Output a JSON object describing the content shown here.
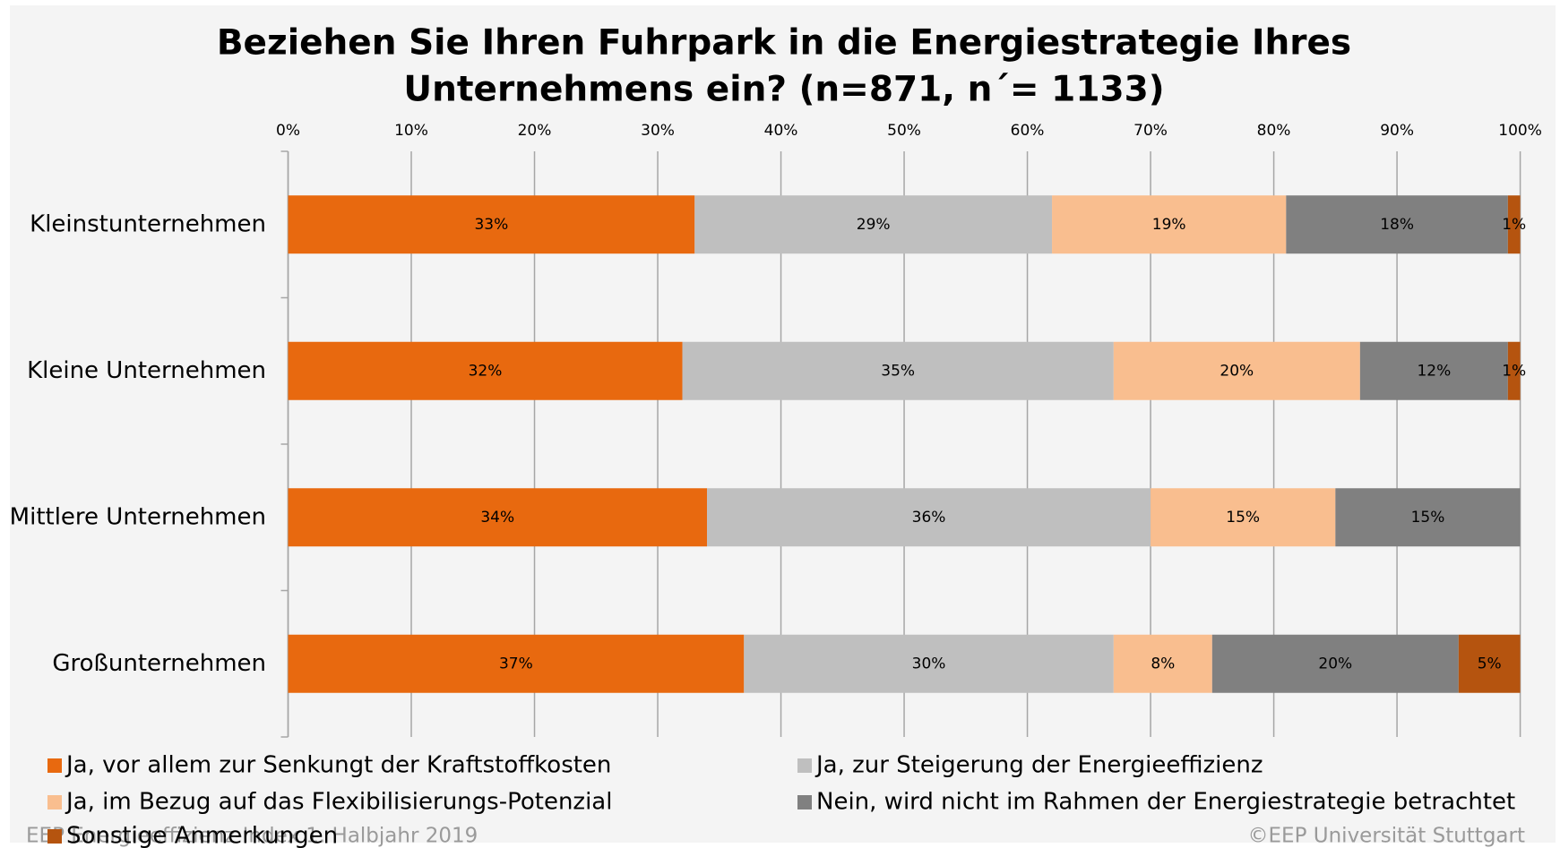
{
  "chart_data": {
    "type": "stacked_barh",
    "title": [
      "Beziehen Sie Ihren Fuhrpark in die Energiestrategie Ihres",
      "Unternehmens ein? (n=871, n´= 1133)"
    ],
    "categories": [
      "Kleinstunternehmen",
      "Kleine Unternehmen",
      "Mittlere Unternehmen",
      "Großunternehmen"
    ],
    "series": [
      {
        "name": "Ja, vor allem zur Senkungt der Kraftstoffkosten",
        "color": "#e8690f",
        "values": [
          33,
          32,
          34,
          37
        ],
        "value_labels": [
          "33%",
          "32%",
          "34%",
          "37%"
        ]
      },
      {
        "name": "Ja, zur Steigerung der Energieeffizienz",
        "color": "#bfbfbf",
        "values": [
          29,
          35,
          36,
          30
        ],
        "value_labels": [
          "29%",
          "35%",
          "36%",
          "30%"
        ]
      },
      {
        "name": "Ja, im Bezug auf das Flexibilisierungs-Potenzial",
        "color": "#f9be8f",
        "values": [
          19,
          20,
          15,
          8
        ],
        "value_labels": [
          "19%",
          "20%",
          "15%",
          "8%"
        ]
      },
      {
        "name": "Nein, wird nicht im Rahmen der Energiestrategie betrachtet",
        "color": "#808080",
        "values": [
          18,
          12,
          15,
          20
        ],
        "value_labels": [
          "18%",
          "12%",
          "15%",
          "20%"
        ]
      },
      {
        "name": "Sonstige Anmerkungen",
        "color": "#b5540f",
        "values": [
          1,
          1,
          null,
          5
        ],
        "value_labels": [
          "1%",
          "1%",
          null,
          "5%"
        ]
      }
    ],
    "xlim": [
      0,
      100
    ],
    "xticks": [
      {
        "value": 0,
        "label": "0%"
      },
      {
        "value": 10,
        "label": "10%"
      },
      {
        "value": 20,
        "label": "20%"
      },
      {
        "value": 30,
        "label": "30%"
      },
      {
        "value": 40,
        "label": "40%"
      },
      {
        "value": 50,
        "label": "50%"
      },
      {
        "value": 60,
        "label": "60%"
      },
      {
        "value": 70,
        "label": "70%"
      },
      {
        "value": 80,
        "label": "80%"
      },
      {
        "value": 90,
        "label": "90%"
      },
      {
        "value": 100,
        "label": "100%"
      }
    ],
    "grid": true,
    "legend": "bottom",
    "footer_left": "EEP Energieeffizienz-Index 1. Halbjahr 2019",
    "footer_right": "©EEP Universität Stuttgart"
  }
}
